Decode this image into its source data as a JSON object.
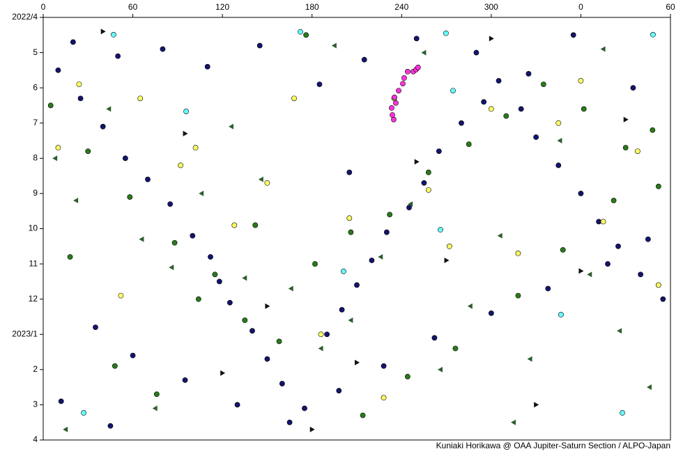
{
  "chart_data": {
    "type": "scatter",
    "xlim": [
      0,
      420
    ],
    "xticks": [
      0,
      60,
      120,
      180,
      240,
      300,
      {
        "value": 360,
        "label": "0"
      },
      {
        "value": 420,
        "label": "60"
      }
    ],
    "ylim": [
      0,
      12
    ],
    "y_reversed": true,
    "yticks": [
      {
        "value": 0,
        "label": "2022/4"
      },
      {
        "value": 1,
        "label": "5"
      },
      {
        "value": 2,
        "label": "6"
      },
      {
        "value": 3,
        "label": "7"
      },
      {
        "value": 4,
        "label": "8"
      },
      {
        "value": 5,
        "label": "9"
      },
      {
        "value": 6,
        "label": "10"
      },
      {
        "value": 7,
        "label": "11"
      },
      {
        "value": 8,
        "label": "12"
      },
      {
        "value": 9,
        "label": "2023/1"
      },
      {
        "value": 10,
        "label": "2"
      },
      {
        "value": 11,
        "label": "3"
      },
      {
        "value": 12,
        "label": "4"
      }
    ],
    "credit": "Kuniaki Horikawa @ OAA Jupiter-Saturn Section / ALPO-Japan",
    "series": [
      {
        "color": "#14146e",
        "marker": "circle",
        "x": [
          10,
          25,
          40,
          55,
          70,
          85,
          100,
          112,
          118,
          125,
          140,
          150,
          160,
          175,
          190,
          200,
          210,
          220,
          230,
          245,
          255,
          265,
          280,
          295,
          305,
          320,
          330,
          345,
          360,
          372,
          385,
          400,
          415,
          35,
          60,
          95,
          130,
          165,
          198,
          228,
          262,
          300,
          338,
          378,
          405,
          20,
          50,
          80,
          110,
          145,
          185,
          215,
          250,
          290,
          325,
          355,
          395,
          12,
          45,
          205
        ],
        "y": [
          1.5,
          2.3,
          3.1,
          4.0,
          4.6,
          5.3,
          6.2,
          6.8,
          7.5,
          8.1,
          8.9,
          9.7,
          10.4,
          11.1,
          9.0,
          8.3,
          7.6,
          6.9,
          6.1,
          5.4,
          4.7,
          3.8,
          3.0,
          2.4,
          1.8,
          2.6,
          3.4,
          4.2,
          5.0,
          5.8,
          6.5,
          7.3,
          8.0,
          8.8,
          9.6,
          10.3,
          11.0,
          11.5,
          10.6,
          9.9,
          9.1,
          8.4,
          7.7,
          7.0,
          6.3,
          0.7,
          1.1,
          0.9,
          1.4,
          0.8,
          1.9,
          1.2,
          0.6,
          1.0,
          1.6,
          0.5,
          2.0,
          10.9,
          11.6,
          4.4
        ]
      },
      {
        "color": "#2a7a1a",
        "marker": "circle",
        "x": [
          5,
          30,
          58,
          88,
          115,
          135,
          158,
          182,
          206,
          232,
          258,
          285,
          310,
          335,
          362,
          390,
          412,
          18,
          48,
          76,
          104,
          142,
          176,
          214,
          244,
          276,
          318,
          348,
          382,
          408
        ],
        "y": [
          2.5,
          3.8,
          5.1,
          6.4,
          7.3,
          8.6,
          9.2,
          7.0,
          6.1,
          5.6,
          4.4,
          3.6,
          2.8,
          1.9,
          2.6,
          3.7,
          4.8,
          6.8,
          9.9,
          10.7,
          8.0,
          5.9,
          0.5,
          11.3,
          10.2,
          9.4,
          7.9,
          6.6,
          5.2,
          3.2
        ]
      },
      {
        "color": "#ffff66",
        "marker": "circle",
        "x": [
          10,
          24,
          65,
          92,
          102,
          128,
          150,
          168,
          205,
          235,
          258,
          272,
          300,
          318,
          345,
          360,
          375,
          398,
          412,
          52,
          186,
          228
        ],
        "y": [
          3.7,
          1.9,
          2.3,
          4.2,
          3.7,
          5.9,
          4.7,
          2.3,
          5.7,
          2.3,
          4.9,
          6.5,
          2.6,
          6.7,
          3.0,
          1.8,
          5.8,
          3.8,
          7.6,
          7.9,
          9.0,
          10.8
        ]
      },
      {
        "color": "#66ffff",
        "marker": "circle",
        "x": [
          47.1,
          172.2,
          269.7,
          95.7,
          201.1,
          266,
          408.3,
          27.1,
          387.8,
          346.7,
          274.4
        ],
        "y": [
          0.49,
          0.41,
          0.45,
          2.67,
          7.21,
          6.03,
          0.49,
          11.23,
          11.23,
          8.44,
          2.08
        ]
      },
      {
        "color": "#ff33dd",
        "marker": "circle",
        "x": [
          234.7,
          233.8,
          233.3,
          236.1,
          235.2,
          238,
          240.8,
          241.7,
          244,
          247.8,
          249.7,
          251
        ],
        "y": [
          2.9,
          2.77,
          2.57,
          2.43,
          2.27,
          2.08,
          1.88,
          1.72,
          1.54,
          1.54,
          1.48,
          1.42
        ]
      },
      {
        "color": "#2e5e2e",
        "marker": "triangle-left",
        "x": [
          8,
          22,
          44,
          66,
          86,
          106,
          126,
          146,
          166,
          186,
          206,
          226,
          246,
          266,
          286,
          306,
          326,
          346,
          366,
          386,
          406,
          15,
          75,
          135,
          195,
          255,
          315,
          375
        ],
        "y": [
          4.0,
          5.2,
          2.6,
          6.3,
          7.1,
          5.0,
          3.1,
          4.6,
          7.7,
          9.4,
          8.6,
          6.8,
          5.3,
          10.0,
          8.2,
          6.2,
          9.7,
          3.5,
          7.3,
          8.9,
          10.5,
          11.7,
          11.1,
          7.4,
          0.8,
          1.0,
          11.5,
          0.9
        ]
      },
      {
        "color": "#111111",
        "marker": "triangle-right",
        "x": [
          40,
          95,
          150,
          210,
          270,
          330,
          390,
          120,
          250,
          360,
          180,
          300
        ],
        "y": [
          0.4,
          3.3,
          8.2,
          9.8,
          6.9,
          11.0,
          2.9,
          10.1,
          4.1,
          7.2,
          11.7,
          0.6
        ]
      }
    ]
  }
}
